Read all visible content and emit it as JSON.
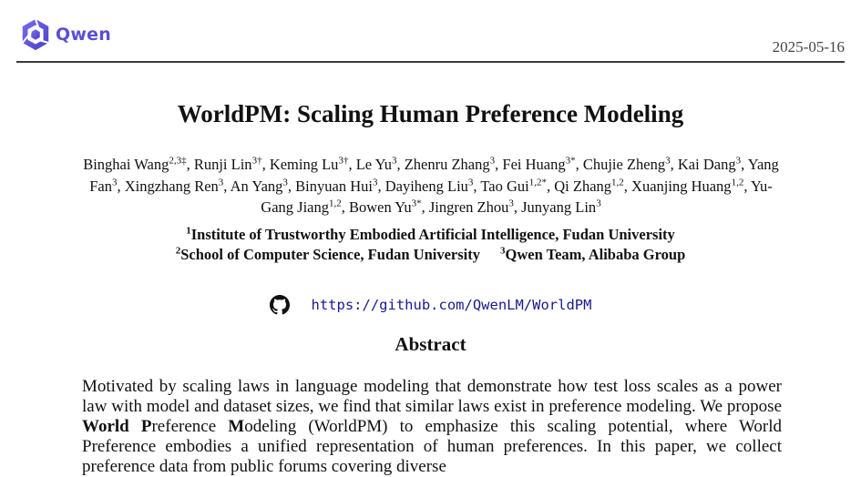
{
  "brand": {
    "name": "Qwen",
    "logo_color": "#5a4fd6"
  },
  "date": "2025-05-16",
  "title": "WorldPM: Scaling Human Preference Modeling",
  "authors": [
    {
      "name": "Binghai Wang",
      "sup": "2,3‡"
    },
    {
      "name": "Runji Lin",
      "sup": "3†"
    },
    {
      "name": "Keming Lu",
      "sup": "3†"
    },
    {
      "name": "Le Yu",
      "sup": "3"
    },
    {
      "name": "Zhenru Zhang",
      "sup": "3"
    },
    {
      "name": "Fei Huang",
      "sup": "3*"
    },
    {
      "name": "Chujie Zheng",
      "sup": "3"
    },
    {
      "name": "Kai Dang",
      "sup": "3"
    },
    {
      "name": "Yang Fan",
      "sup": "3"
    },
    {
      "name": "Xingzhang Ren",
      "sup": "3"
    },
    {
      "name": "An Yang",
      "sup": "3"
    },
    {
      "name": "Binyuan Hui",
      "sup": "3"
    },
    {
      "name": "Dayiheng Liu",
      "sup": "3"
    },
    {
      "name": "Tao Gui",
      "sup": "1,2*"
    },
    {
      "name": "Qi Zhang",
      "sup": "1,2"
    },
    {
      "name": "Xuanjing Huang",
      "sup": "1,2"
    },
    {
      "name": "Yu-Gang Jiang",
      "sup": "1,2"
    },
    {
      "name": "Bowen Yu",
      "sup": "3*"
    },
    {
      "name": "Jingren Zhou",
      "sup": "3"
    },
    {
      "name": "Junyang Lin",
      "sup": "3"
    }
  ],
  "affiliations": {
    "a1": {
      "num": "1",
      "name": "Institute of Trustworthy Embodied Artificial Intelligence, Fudan University"
    },
    "a2": {
      "num": "2",
      "name": "School of Computer Science, Fudan University"
    },
    "a3": {
      "num": "3",
      "name": "Qwen Team, Alibaba Group"
    }
  },
  "repo_url": "https://github.com/QwenLM/WorldPM",
  "abstract": {
    "heading": "Abstract",
    "text_1": "Motivated by scaling laws in language modeling that demonstrate how test loss scales as a power law with model and dataset sizes, we find that similar laws exist in preference modeling. We propose ",
    "bold_w": "World P",
    "text_2": "reference ",
    "bold_m": "M",
    "text_3": "odeling (WorldPM) to emphasize this scaling potential, where World Preference embodies a unified representation of human preferences. In this paper, we collect preference data from public forums covering diverse"
  }
}
